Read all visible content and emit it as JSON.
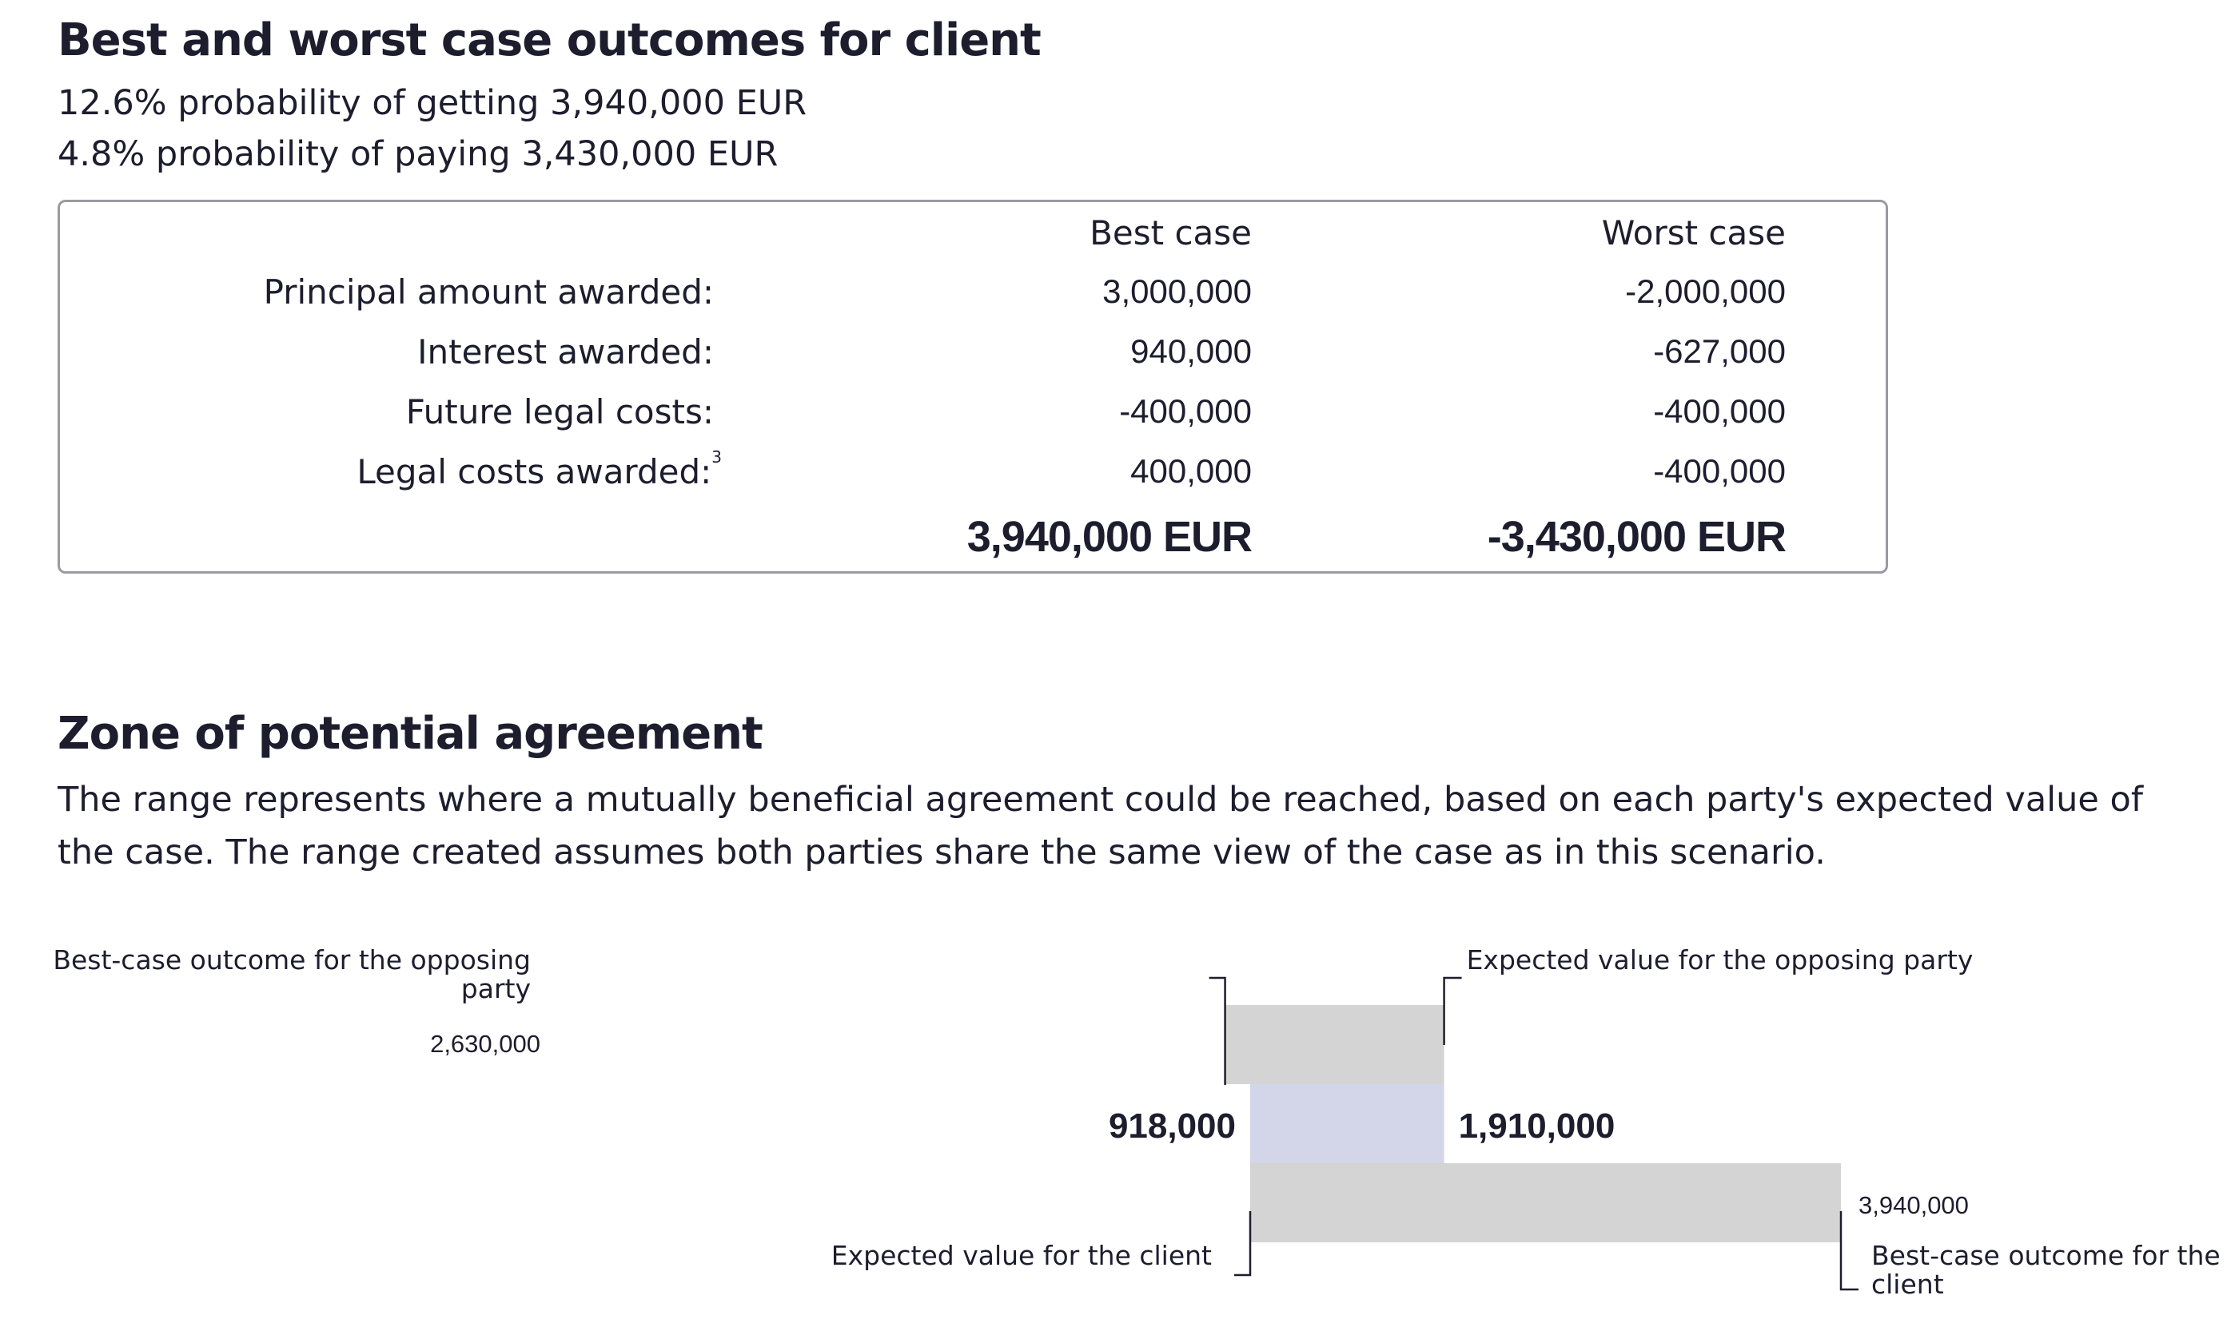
{
  "outcomes": {
    "title": "Best and worst case outcomes for client",
    "best_line": "12.6% probability of getting 3,940,000 EUR",
    "worst_line": "4.8% probability of paying 3,430,000 EUR",
    "table": {
      "col_best": "Best case",
      "col_worst": "Worst case",
      "rows": [
        {
          "label": "Principal amount awarded:",
          "footnote": "",
          "best": "3,000,000",
          "worst": "-2,000,000"
        },
        {
          "label": "Interest awarded:",
          "footnote": "",
          "best": "940,000",
          "worst": "-627,000"
        },
        {
          "label": "Future legal costs:",
          "footnote": "",
          "best": "-400,000",
          "worst": "-400,000"
        },
        {
          "label": "Legal costs awarded:",
          "footnote": "3",
          "best": "400,000",
          "worst": "-400,000"
        }
      ],
      "total_best": "3,940,000 EUR",
      "total_worst": "-3,430,000 EUR"
    }
  },
  "zopa": {
    "title": "Zone of potential agreement",
    "description": "The range represents where a mutually beneficial agreement could be reached, based on each party's expected value of the case. The range created assumes both parties share the same view of the case as in this scenario."
  },
  "chart_data": {
    "type": "bar",
    "orientation": "horizontal-range",
    "title": "",
    "xlabel": "",
    "ylabel": "",
    "grid": false,
    "colors": {
      "range_bar": "#d4d4d4",
      "zopa": "#d3d5e8"
    },
    "bars": [
      {
        "from": 918000,
        "to": 2630000,
        "start_label": "Best-case outcome for the opposing party",
        "start_value_label": "2,630,000",
        "end_label": "Expected value for the opposing party",
        "end_value_label": ""
      },
      {
        "from": 918000,
        "to": 1910000,
        "zopa": true,
        "low_label": "918,000",
        "high_label": "1,910,000"
      },
      {
        "from": 918000,
        "to": 3940000,
        "start_label": "Expected value for the client",
        "start_value_label": "",
        "end_label": "Best-case outcome for the client",
        "end_value_label": "3,940,000"
      }
    ]
  }
}
